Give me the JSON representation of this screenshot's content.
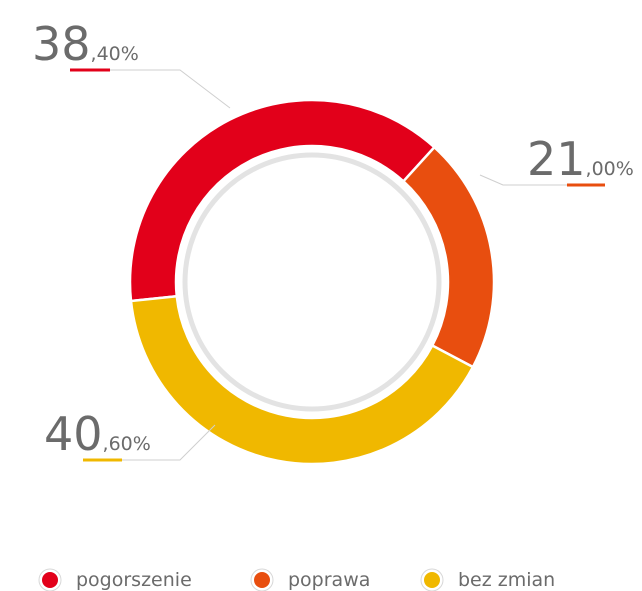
{
  "chart_data": {
    "type": "donut",
    "categories": [
      "pogorszenie",
      "poprawa",
      "bez zmian"
    ],
    "values": [
      38.4,
      21.0,
      40.6
    ],
    "value_labels": [
      "38,40%",
      "21,00%",
      "40,60%"
    ],
    "colors": [
      "#e2001a",
      "#e84e0f",
      "#f0b800"
    ],
    "legend": "bottom"
  }
}
